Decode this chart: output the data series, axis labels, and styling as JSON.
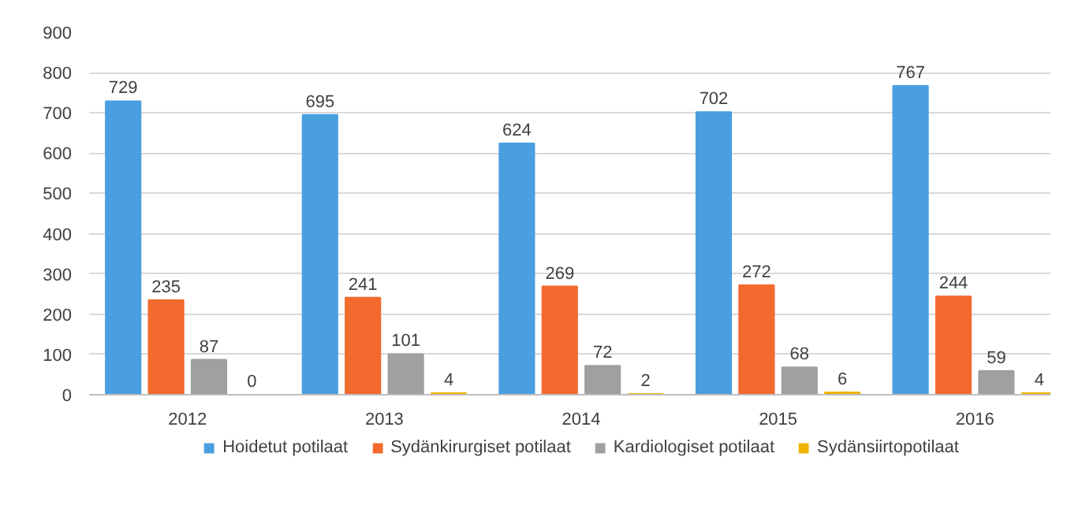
{
  "chart_data": {
    "type": "bar",
    "categories": [
      "2012",
      "2013",
      "2014",
      "2015",
      "2016"
    ],
    "series": [
      {
        "name": "Hoidetut potilaat",
        "color": "#4a9fe0",
        "values": [
          729,
          695,
          624,
          702,
          767
        ]
      },
      {
        "name": "Sydänkirurgiset potilaat",
        "color": "#f26a2e",
        "values": [
          235,
          241,
          269,
          272,
          244
        ]
      },
      {
        "name": "Kardiologiset potilaat",
        "color": "#a0a0a0",
        "values": [
          87,
          101,
          72,
          68,
          59
        ]
      },
      {
        "name": "Sydänsiirtopotilaat",
        "color": "#f0b400",
        "values": [
          0,
          4,
          2,
          6,
          4
        ]
      }
    ],
    "ylim": [
      0,
      900
    ],
    "yticks": [
      0,
      100,
      200,
      300,
      400,
      500,
      600,
      700,
      800,
      900
    ],
    "grid": "y",
    "legend": "bottom",
    "data_labels": true
  }
}
